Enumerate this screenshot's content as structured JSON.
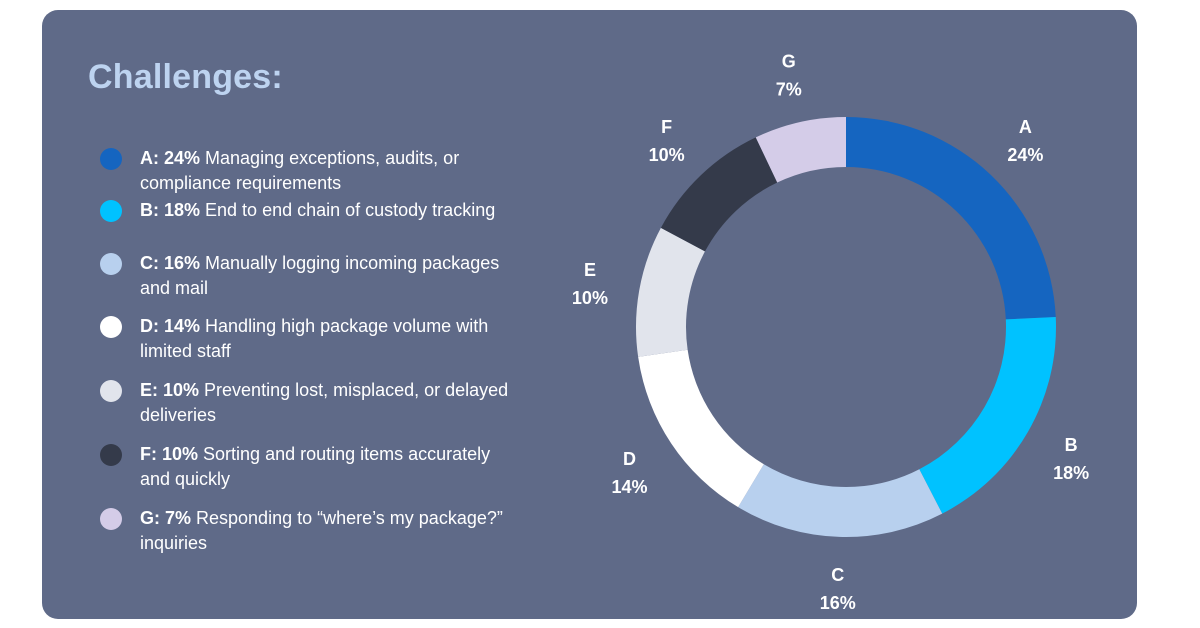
{
  "title": "Challenges:",
  "chart_data": {
    "type": "pie",
    "title": "Challenges:",
    "series": [
      {
        "label": "A",
        "value": 24,
        "display": "24%",
        "description": "Managing exceptions, audits, or compliance requirements",
        "color": "#1565c0"
      },
      {
        "label": "B",
        "value": 18,
        "display": "18%",
        "description": "End to end chain of custody tracking",
        "color": "#00c2ff"
      },
      {
        "label": "C",
        "value": 16,
        "display": "16%",
        "description": "Manually logging incoming packages and mail",
        "color": "#b8d0ee"
      },
      {
        "label": "D",
        "value": 14,
        "display": "14%",
        "description": "Handling high package volume with limited staff",
        "color": "#ffffff"
      },
      {
        "label": "E",
        "value": 10,
        "display": "10%",
        "description": "Preventing lost, misplaced, or delayed deliveries",
        "color": "#e1e4ec"
      },
      {
        "label": "F",
        "value": 10,
        "display": "10%",
        "description": "Sorting and routing items accurately and quickly",
        "color": "#343a4a"
      },
      {
        "label": "G",
        "value": 7,
        "display": "7%",
        "description": "Responding to “where’s my package?” inquiries",
        "color": "#d4cce8"
      }
    ],
    "legend_position": "left",
    "donut": true
  }
}
